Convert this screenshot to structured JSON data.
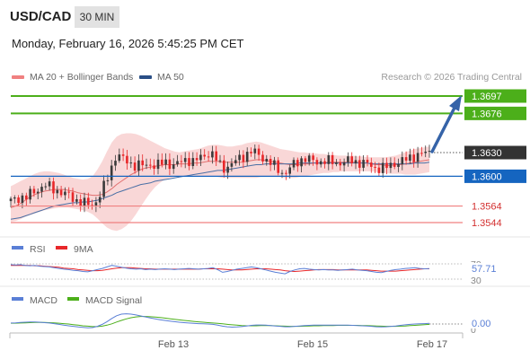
{
  "header": {
    "symbol": "USD/CAD",
    "timeframe": "30 MIN",
    "datetime": "Monday, February 16, 2026 5:45:25 PM CET"
  },
  "legend": {
    "ma20_bb": "MA 20 + Bollinger Bands",
    "ma50": "MA 50",
    "research": "Research © 2026 Trading Central"
  },
  "colors": {
    "bull": "#3a3a3a",
    "bear": "#e8272a",
    "bollinger": "#f7c9c9",
    "ma20": "#e07070",
    "ma50": "#4a6fa5",
    "green_level": "#4caf1a",
    "blue_level": "#1565c0",
    "red_level": "#f08080",
    "arrow": "#3563a8",
    "rsi": "#5a7fd6",
    "rsi_ma": "#e8272a",
    "macd": "#5a7fd6",
    "macd_signal": "#4caf1a"
  },
  "chart_data": [
    {
      "type": "candlestick",
      "x_ticks": [
        "Feb 13",
        "Feb 15",
        "Feb 17"
      ],
      "current_price": "1.3630",
      "levels": [
        {
          "label": "1.3697",
          "value": 1.3697,
          "kind": "resistance"
        },
        {
          "label": "1.3676",
          "value": 1.3676,
          "kind": "resistance"
        },
        {
          "label": "1.3600",
          "value": 1.36,
          "kind": "pivot"
        },
        {
          "label": "1.3564",
          "value": 1.3564,
          "kind": "support"
        },
        {
          "label": "1.3544",
          "value": 1.3544,
          "kind": "support"
        }
      ],
      "indicators": [
        "MA 20 + Bollinger Bands",
        "MA 50"
      ],
      "close_path": [
        1.357,
        1.3572,
        1.3575,
        1.3574,
        1.3578,
        1.3582,
        1.3585,
        1.359,
        1.3587,
        1.3584,
        1.3582,
        1.3579,
        1.3577,
        1.3573,
        1.357,
        1.3568,
        1.3566,
        1.3565,
        1.3572,
        1.3583,
        1.3596,
        1.3612,
        1.3628,
        1.3622,
        1.3618,
        1.3615,
        1.3613,
        1.3614,
        1.3612,
        1.3615,
        1.3613,
        1.3615,
        1.3617,
        1.3615,
        1.3614,
        1.3616,
        1.3619,
        1.362,
        1.3618,
        1.3621,
        1.3624,
        1.3628,
        1.3626,
        1.3618,
        1.3609,
        1.3612,
        1.3615,
        1.362,
        1.3623,
        1.3627,
        1.363,
        1.3628,
        1.3624,
        1.362,
        1.3616,
        1.3611,
        1.3606,
        1.3603,
        1.361,
        1.3615,
        1.3619,
        1.3622,
        1.362,
        1.3618,
        1.3617,
        1.3619,
        1.3618,
        1.3617,
        1.3616,
        1.3617,
        1.3618,
        1.3619,
        1.3617,
        1.3616,
        1.3615,
        1.3612,
        1.361,
        1.3609,
        1.3611,
        1.3614,
        1.3616,
        1.3617,
        1.362,
        1.3623,
        1.3625,
        1.3626,
        1.3628,
        1.363
      ],
      "ma20": [
        1.3562,
        1.3564,
        1.3567,
        1.3571,
        1.3575,
        1.3578,
        1.358,
        1.3582,
        1.3583,
        1.3584,
        1.3584,
        1.3584,
        1.3583,
        1.3582,
        1.358,
        1.3579,
        1.3578,
        1.3577,
        1.3577,
        1.3578,
        1.3581,
        1.3585,
        1.359,
        1.3594,
        1.3598,
        1.3602,
        1.3605,
        1.3608,
        1.361,
        1.3611,
        1.3612,
        1.3613,
        1.3614,
        1.3614,
        1.3614,
        1.3615,
        1.3615,
        1.3615,
        1.3616,
        1.3616,
        1.3617,
        1.3618,
        1.3618,
        1.3618,
        1.3617,
        1.3617,
        1.3617,
        1.3617,
        1.3617,
        1.3618,
        1.3619,
        1.362,
        1.362,
        1.3619,
        1.3618,
        1.3617,
        1.3616,
        1.3615,
        1.3614,
        1.3614,
        1.3614,
        1.3615,
        1.3615,
        1.3616,
        1.3616,
        1.3616,
        1.3617,
        1.3617,
        1.3617,
        1.3617,
        1.3617,
        1.3617,
        1.3617,
        1.3616,
        1.3616,
        1.3615,
        1.3614,
        1.3614,
        1.3613,
        1.3613,
        1.3614,
        1.3614,
        1.3615,
        1.3616,
        1.3617,
        1.3618,
        1.3619,
        1.362
      ],
      "bb_upper": [
        1.3588,
        1.3591,
        1.3594,
        1.3597,
        1.36,
        1.3603,
        1.3605,
        1.3606,
        1.3606,
        1.3605,
        1.3604,
        1.3602,
        1.36,
        1.3598,
        1.3597,
        1.3596,
        1.3597,
        1.36,
        1.3608,
        1.3618,
        1.363,
        1.3641,
        1.3648,
        1.3651,
        1.3652,
        1.3652,
        1.3651,
        1.3649,
        1.3646,
        1.3643,
        1.364,
        1.3637,
        1.3634,
        1.3632,
        1.363,
        1.3629,
        1.363,
        1.3631,
        1.3632,
        1.3633,
        1.3635,
        1.3637,
        1.3638,
        1.3638,
        1.3637,
        1.3636,
        1.3636,
        1.3637,
        1.3638,
        1.364,
        1.3641,
        1.3642,
        1.3641,
        1.3639,
        1.3637,
        1.3635,
        1.3633,
        1.3632,
        1.3631,
        1.363,
        1.3629,
        1.3629,
        1.3628,
        1.3628,
        1.3627,
        1.3627,
        1.3626,
        1.3626,
        1.3625,
        1.3625,
        1.3625,
        1.3625,
        1.3624,
        1.3624,
        1.3623,
        1.3623,
        1.3623,
        1.3623,
        1.3623,
        1.3624,
        1.3625,
        1.3627,
        1.3629,
        1.3631,
        1.3633,
        1.3634,
        1.3635,
        1.3636
      ],
      "bb_lower": [
        1.3545,
        1.3546,
        1.3548,
        1.3551,
        1.3553,
        1.3555,
        1.3557,
        1.3559,
        1.356,
        1.3561,
        1.3562,
        1.3562,
        1.3562,
        1.3561,
        1.356,
        1.3559,
        1.3557,
        1.3554,
        1.3549,
        1.3543,
        1.3538,
        1.3535,
        1.3534,
        1.3536,
        1.354,
        1.3546,
        1.3554,
        1.3563,
        1.3572,
        1.358,
        1.3587,
        1.3592,
        1.3596,
        1.3598,
        1.3599,
        1.36,
        1.36,
        1.36,
        1.36,
        1.36,
        1.36,
        1.36,
        1.36,
        1.3599,
        1.3598,
        1.3598,
        1.3598,
        1.3598,
        1.3598,
        1.3598,
        1.3598,
        1.3598,
        1.3599,
        1.3599,
        1.3599,
        1.3599,
        1.3599,
        1.3598,
        1.3598,
        1.3598,
        1.3599,
        1.36,
        1.3601,
        1.3602,
        1.3603,
        1.3604,
        1.3604,
        1.3605,
        1.3605,
        1.3606,
        1.3606,
        1.3606,
        1.3606,
        1.3606,
        1.3606,
        1.3606,
        1.3605,
        1.3604,
        1.3604,
        1.3603,
        1.3603,
        1.3603,
        1.3602,
        1.3602,
        1.3602,
        1.3603,
        1.3604,
        1.3605
      ],
      "ma50": [
        1.3548,
        1.3549,
        1.355,
        1.3552,
        1.3554,
        1.3556,
        1.3558,
        1.356,
        1.3562,
        1.3564,
        1.3565,
        1.3566,
        1.3567,
        1.3568,
        1.3568,
        1.3569,
        1.3569,
        1.357,
        1.3571,
        1.3573,
        1.3575,
        1.3577,
        1.358,
        1.3582,
        1.3584,
        1.3586,
        1.3588,
        1.359,
        1.3591,
        1.3592,
        1.3594,
        1.3595,
        1.3596,
        1.3597,
        1.3598,
        1.3599,
        1.36,
        1.3601,
        1.3602,
        1.3603,
        1.3604,
        1.3605,
        1.3606,
        1.3607,
        1.3607,
        1.3608,
        1.3609,
        1.361,
        1.3611,
        1.3612,
        1.3613,
        1.3614,
        1.3614,
        1.3615,
        1.3615,
        1.3615,
        1.3615,
        1.3615,
        1.3615,
        1.3615,
        1.3616,
        1.3616,
        1.3616,
        1.3616,
        1.3616,
        1.3616,
        1.3616,
        1.3616,
        1.3616,
        1.3616,
        1.3616,
        1.3616,
        1.3616,
        1.3616,
        1.3616,
        1.3615,
        1.3615,
        1.3615,
        1.3615,
        1.3615,
        1.3615,
        1.3615,
        1.3615,
        1.3615,
        1.3616,
        1.3616,
        1.3616,
        1.3617
      ]
    },
    {
      "type": "line",
      "series": [
        {
          "name": "RSI",
          "value_label": "57.71"
        },
        {
          "name": "9MA"
        }
      ],
      "y_ticks": [
        "70",
        "30"
      ],
      "ylim": [
        30,
        70
      ],
      "rsi_values": [
        68,
        67,
        68,
        66,
        65,
        66,
        64,
        63,
        62,
        60,
        58,
        56,
        55,
        53,
        52,
        50,
        49,
        52,
        55,
        58,
        62,
        66,
        64,
        61,
        59,
        57,
        56,
        57,
        55,
        56,
        55,
        56,
        57,
        56,
        55,
        56,
        57,
        58,
        57,
        56,
        57,
        58,
        60,
        55,
        48,
        50,
        53,
        56,
        58,
        60,
        62,
        60,
        57,
        54,
        51,
        48,
        46,
        44,
        50,
        54,
        57,
        58,
        56,
        55,
        54,
        55,
        54,
        54,
        53,
        54,
        55,
        56,
        54,
        53,
        52,
        50,
        48,
        47,
        50,
        53,
        55,
        56,
        58,
        59,
        60,
        58,
        57,
        57.71
      ],
      "ma_values": [
        66,
        66,
        66,
        66,
        66,
        65,
        65,
        64,
        63,
        62,
        61,
        59,
        58,
        57,
        55,
        54,
        53,
        52,
        52,
        53,
        55,
        57,
        59,
        60,
        60,
        60,
        59,
        58,
        57,
        57,
        56,
        56,
        56,
        56,
        56,
        56,
        56,
        56,
        56,
        56,
        57,
        57,
        57,
        57,
        56,
        55,
        54,
        54,
        54,
        55,
        56,
        57,
        57,
        57,
        56,
        55,
        54,
        52,
        51,
        50,
        51,
        52,
        53,
        54,
        55,
        55,
        55,
        55,
        54,
        54,
        54,
        54,
        54,
        54,
        54,
        53,
        52,
        51,
        51,
        51,
        51,
        52,
        53,
        54,
        55,
        56,
        57,
        57
      ]
    },
    {
      "type": "line",
      "series": [
        {
          "name": "MACD",
          "value_label": "0.00"
        },
        {
          "name": "MACD Signal"
        }
      ],
      "y_ticks": [
        "0"
      ],
      "ylim": [
        -1,
        1
      ],
      "macd_values": [
        0.05,
        0.06,
        0.08,
        0.09,
        0.1,
        0.1,
        0.09,
        0.07,
        0.05,
        0.02,
        -0.02,
        -0.06,
        -0.09,
        -0.12,
        -0.15,
        -0.17,
        -0.19,
        -0.18,
        -0.12,
        -0.02,
        0.12,
        0.28,
        0.42,
        0.5,
        0.52,
        0.5,
        0.46,
        0.41,
        0.36,
        0.31,
        0.26,
        0.22,
        0.18,
        0.15,
        0.12,
        0.09,
        0.07,
        0.05,
        0.03,
        0.02,
        0.01,
        0.0,
        -0.02,
        -0.06,
        -0.11,
        -0.14,
        -0.16,
        -0.15,
        -0.13,
        -0.1,
        -0.07,
        -0.05,
        -0.05,
        -0.06,
        -0.08,
        -0.1,
        -0.12,
        -0.14,
        -0.14,
        -0.12,
        -0.1,
        -0.08,
        -0.07,
        -0.06,
        -0.06,
        -0.06,
        -0.06,
        -0.06,
        -0.06,
        -0.06,
        -0.06,
        -0.07,
        -0.08,
        -0.09,
        -0.1,
        -0.12,
        -0.14,
        -0.15,
        -0.14,
        -0.12,
        -0.1,
        -0.07,
        -0.04,
        -0.02,
        0.0,
        0.01,
        0.02,
        0.03
      ],
      "signal_values": [
        0.04,
        0.04,
        0.05,
        0.06,
        0.07,
        0.08,
        0.08,
        0.08,
        0.07,
        0.06,
        0.04,
        0.02,
        0.0,
        -0.03,
        -0.06,
        -0.09,
        -0.11,
        -0.13,
        -0.13,
        -0.11,
        -0.06,
        0.01,
        0.1,
        0.18,
        0.26,
        0.32,
        0.36,
        0.38,
        0.38,
        0.37,
        0.35,
        0.33,
        0.3,
        0.27,
        0.24,
        0.21,
        0.18,
        0.16,
        0.13,
        0.11,
        0.09,
        0.07,
        0.05,
        0.03,
        0.01,
        -0.02,
        -0.04,
        -0.06,
        -0.08,
        -0.09,
        -0.09,
        -0.09,
        -0.08,
        -0.08,
        -0.08,
        -0.09,
        -0.1,
        -0.11,
        -0.12,
        -0.12,
        -0.12,
        -0.11,
        -0.1,
        -0.09,
        -0.09,
        -0.08,
        -0.08,
        -0.08,
        -0.07,
        -0.07,
        -0.07,
        -0.07,
        -0.07,
        -0.08,
        -0.08,
        -0.09,
        -0.1,
        -0.11,
        -0.12,
        -0.12,
        -0.12,
        -0.11,
        -0.1,
        -0.08,
        -0.07,
        -0.05,
        -0.03,
        -0.02
      ]
    }
  ]
}
